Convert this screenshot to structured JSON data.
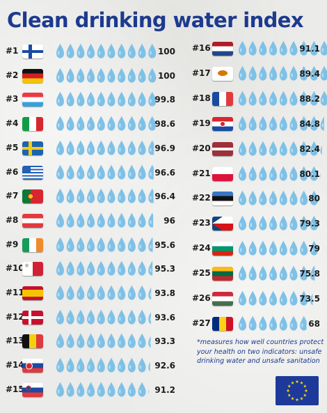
{
  "title": "Clean drinking water index",
  "footnote": "*measures how well countries protect your health on two indicators: unsafe drinking water and unsafe sanitation",
  "icons": {
    "unit": "water-drop-icon",
    "emblem": "eu-flag-icon"
  },
  "colors": {
    "drop": "#7fc1e6",
    "drop_highlight": "#b6dcf2",
    "title": "#1c3a8e"
  },
  "chart_data": {
    "type": "bar",
    "title": "Clean drinking water index",
    "encoding": "water drops, one drop per 10 index points",
    "ylim": [
      0,
      100
    ],
    "categories": [
      "#1",
      "#2",
      "#3",
      "#4",
      "#5",
      "#6",
      "#7",
      "#8",
      "#9",
      "#10",
      "#11",
      "#12",
      "#13",
      "#14",
      "#15",
      "#16",
      "#17",
      "#18",
      "#19",
      "#20",
      "#21",
      "#22",
      "#23",
      "#24",
      "#25",
      "#26",
      "#27"
    ],
    "values": [
      100,
      100,
      99.8,
      98.6,
      96.9,
      96.6,
      96.4,
      96,
      95.6,
      95.3,
      93.8,
      93.6,
      93.3,
      92.6,
      91.2,
      91.1,
      89.4,
      88.2,
      84.8,
      82.4,
      80.1,
      80,
      79.3,
      79,
      75.8,
      73.5,
      68
    ],
    "flags": [
      "finland",
      "germany",
      "luxembourg",
      "italy",
      "sweden",
      "greece",
      "portugal",
      "austria",
      "ireland",
      "malta",
      "spain",
      "denmark",
      "belgium",
      "slovakia",
      "slovenia",
      "netherlands",
      "cyprus",
      "france",
      "croatia",
      "latvia",
      "poland",
      "estonia",
      "czechia",
      "bulgaria",
      "lithuania",
      "hungary",
      "romania"
    ]
  }
}
